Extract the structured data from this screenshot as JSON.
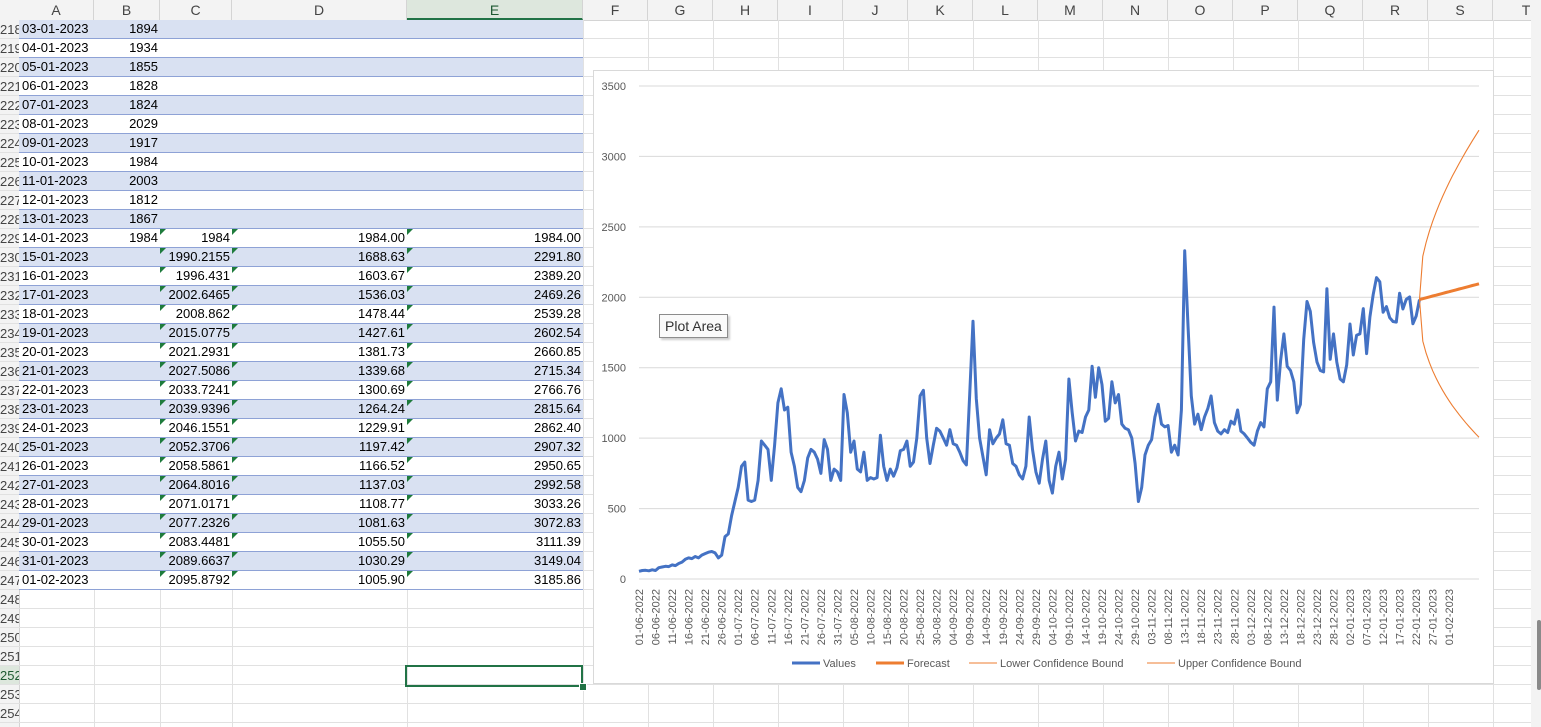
{
  "columns": [
    "A",
    "B",
    "C",
    "D",
    "E",
    "F",
    "G",
    "H",
    "I",
    "J",
    "K",
    "L",
    "M",
    "N",
    "O",
    "P",
    "Q",
    "R",
    "S",
    "T"
  ],
  "selected_column": "E",
  "rows": [
    {
      "num": "218",
      "a": "03-01-2023",
      "b": "1894",
      "c": "",
      "d": "",
      "e": ""
    },
    {
      "num": "219",
      "a": "04-01-2023",
      "b": "1934",
      "c": "",
      "d": "",
      "e": ""
    },
    {
      "num": "220",
      "a": "05-01-2023",
      "b": "1855",
      "c": "",
      "d": "",
      "e": ""
    },
    {
      "num": "221",
      "a": "06-01-2023",
      "b": "1828",
      "c": "",
      "d": "",
      "e": ""
    },
    {
      "num": "222",
      "a": "07-01-2023",
      "b": "1824",
      "c": "",
      "d": "",
      "e": ""
    },
    {
      "num": "223",
      "a": "08-01-2023",
      "b": "2029",
      "c": "",
      "d": "",
      "e": ""
    },
    {
      "num": "224",
      "a": "09-01-2023",
      "b": "1917",
      "c": "",
      "d": "",
      "e": ""
    },
    {
      "num": "225",
      "a": "10-01-2023",
      "b": "1984",
      "c": "",
      "d": "",
      "e": ""
    },
    {
      "num": "226",
      "a": "11-01-2023",
      "b": "2003",
      "c": "",
      "d": "",
      "e": ""
    },
    {
      "num": "227",
      "a": "12-01-2023",
      "b": "1812",
      "c": "",
      "d": "",
      "e": ""
    },
    {
      "num": "228",
      "a": "13-01-2023",
      "b": "1867",
      "c": "",
      "d": "",
      "e": ""
    },
    {
      "num": "229",
      "a": "14-01-2023",
      "b": "1984",
      "c": "1984",
      "d": "1984.00",
      "e": "1984.00"
    },
    {
      "num": "230",
      "a": "15-01-2023",
      "b": "",
      "c": "1990.2155",
      "d": "1688.63",
      "e": "2291.80"
    },
    {
      "num": "231",
      "a": "16-01-2023",
      "b": "",
      "c": "1996.431",
      "d": "1603.67",
      "e": "2389.20"
    },
    {
      "num": "232",
      "a": "17-01-2023",
      "b": "",
      "c": "2002.6465",
      "d": "1536.03",
      "e": "2469.26"
    },
    {
      "num": "233",
      "a": "18-01-2023",
      "b": "",
      "c": "2008.862",
      "d": "1478.44",
      "e": "2539.28"
    },
    {
      "num": "234",
      "a": "19-01-2023",
      "b": "",
      "c": "2015.0775",
      "d": "1427.61",
      "e": "2602.54"
    },
    {
      "num": "235",
      "a": "20-01-2023",
      "b": "",
      "c": "2021.2931",
      "d": "1381.73",
      "e": "2660.85"
    },
    {
      "num": "236",
      "a": "21-01-2023",
      "b": "",
      "c": "2027.5086",
      "d": "1339.68",
      "e": "2715.34"
    },
    {
      "num": "237",
      "a": "22-01-2023",
      "b": "",
      "c": "2033.7241",
      "d": "1300.69",
      "e": "2766.76"
    },
    {
      "num": "238",
      "a": "23-01-2023",
      "b": "",
      "c": "2039.9396",
      "d": "1264.24",
      "e": "2815.64"
    },
    {
      "num": "239",
      "a": "24-01-2023",
      "b": "",
      "c": "2046.1551",
      "d": "1229.91",
      "e": "2862.40"
    },
    {
      "num": "240",
      "a": "25-01-2023",
      "b": "",
      "c": "2052.3706",
      "d": "1197.42",
      "e": "2907.32"
    },
    {
      "num": "241",
      "a": "26-01-2023",
      "b": "",
      "c": "2058.5861",
      "d": "1166.52",
      "e": "2950.65"
    },
    {
      "num": "242",
      "a": "27-01-2023",
      "b": "",
      "c": "2064.8016",
      "d": "1137.03",
      "e": "2992.58"
    },
    {
      "num": "243",
      "a": "28-01-2023",
      "b": "",
      "c": "2071.0171",
      "d": "1108.77",
      "e": "3033.26"
    },
    {
      "num": "244",
      "a": "29-01-2023",
      "b": "",
      "c": "2077.2326",
      "d": "1081.63",
      "e": "3072.83"
    },
    {
      "num": "245",
      "a": "30-01-2023",
      "b": "",
      "c": "2083.4481",
      "d": "1055.50",
      "e": "3111.39"
    },
    {
      "num": "246",
      "a": "31-01-2023",
      "b": "",
      "c": "2089.6637",
      "d": "1030.29",
      "e": "3149.04"
    },
    {
      "num": "247",
      "a": "01-02-2023",
      "b": "",
      "c": "2095.8792",
      "d": "1005.90",
      "e": "3185.86"
    }
  ],
  "empty_rows": [
    "248",
    "249",
    "250",
    "251",
    "252",
    "253",
    "254"
  ],
  "selected_row": "252",
  "tooltip": "Plot Area",
  "chart_data": {
    "type": "line",
    "y_ticks": [
      "0",
      "500",
      "1000",
      "1500",
      "2000",
      "2500",
      "3000",
      "3500"
    ],
    "ylim": [
      0,
      3500
    ],
    "grid": true,
    "legend_position": "bottom",
    "x_start": "01-06-2022",
    "x_end": "01-02-2023",
    "x_tick_labels": [
      "01-06-2022",
      "06-06-2022",
      "11-06-2022",
      "16-06-2022",
      "21-06-2022",
      "26-06-2022",
      "01-07-2022",
      "06-07-2022",
      "11-07-2022",
      "16-07-2022",
      "21-07-2022",
      "26-07-2022",
      "31-07-2022",
      "05-08-2022",
      "10-08-2022",
      "15-08-2022",
      "20-08-2022",
      "25-08-2022",
      "30-08-2022",
      "04-09-2022",
      "09-09-2022",
      "14-09-2022",
      "19-09-2022",
      "24-09-2022",
      "29-09-2022",
      "04-10-2022",
      "09-10-2022",
      "14-10-2022",
      "19-10-2022",
      "24-10-2022",
      "29-10-2022",
      "03-11-2022",
      "08-11-2022",
      "13-11-2022",
      "18-11-2022",
      "23-11-2022",
      "28-11-2022",
      "03-12-2022",
      "08-12-2022",
      "13-12-2022",
      "18-12-2022",
      "23-12-2022",
      "28-12-2022",
      "02-01-2023",
      "07-01-2023",
      "12-01-2023",
      "17-01-2023",
      "22-01-2023",
      "27-01-2023",
      "01-02-2023"
    ],
    "series": [
      {
        "name": "Values",
        "color": "#4472c4",
        "style": "thick",
        "values": [
          55,
          60,
          62,
          58,
          65,
          60,
          80,
          85,
          90,
          88,
          100,
          95,
          110,
          120,
          140,
          150,
          145,
          160,
          150,
          170,
          180,
          190,
          195,
          185,
          150,
          170,
          300,
          320,
          450,
          550,
          650,
          800,
          830,
          560,
          550,
          560,
          700,
          980,
          950,
          920,
          700,
          950,
          1250,
          1350,
          1200,
          1220,
          900,
          800,
          650,
          620,
          700,
          860,
          920,
          900,
          850,
          750,
          990,
          920,
          700,
          780,
          760,
          700,
          1310,
          1180,
          900,
          980,
          780,
          760,
          900,
          700,
          720,
          710,
          720,
          1020,
          800,
          700,
          780,
          730,
          790,
          910,
          920,
          980,
          800,
          830,
          1000,
          1300,
          1340,
          1000,
          820,
          950,
          1070,
          1050,
          1000,
          950,
          1060,
          960,
          950,
          900,
          840,
          810,
          1310,
          1830,
          1280,
          1000,
          870,
          740,
          1060,
          960,
          1000,
          1030,
          1130,
          960,
          950,
          820,
          800,
          740,
          710,
          800,
          1150,
          920,
          760,
          680,
          850,
          980,
          700,
          610,
          800,
          900,
          710,
          850,
          1420,
          1180,
          980,
          1050,
          1040,
          1150,
          1200,
          1510,
          1290,
          1500,
          1380,
          1120,
          1140,
          1400,
          1250,
          1310,
          1100,
          1070,
          1060,
          1000,
          820,
          550,
          650,
          880,
          950,
          990,
          1150,
          1240,
          1100,
          1080,
          1090,
          900,
          950,
          880,
          1200,
          2330,
          1800,
          1300,
          1100,
          1170,
          1060,
          1150,
          1210,
          1300,
          1110,
          1050,
          1030,
          1060,
          1040,
          1120,
          1100,
          1200,
          1050,
          1030,
          1000,
          970,
          950,
          1050,
          1110,
          1080,
          1350,
          1400,
          1930,
          1270,
          1550,
          1740,
          1510,
          1480,
          1400,
          1180,
          1240,
          1700,
          1970,
          1900,
          1680,
          1540,
          1480,
          1470,
          2060,
          1560,
          1740,
          1540,
          1420,
          1400,
          1520,
          1810,
          1590,
          1730,
          1740,
          1920,
          1600,
          1860,
          2020,
          2140,
          2110,
          1894,
          1934,
          1855,
          1828,
          1824,
          2029,
          1917,
          1984,
          2003,
          1812,
          1867,
          1984
        ]
      },
      {
        "name": "Forecast",
        "color": "#ed7d31",
        "style": "thick",
        "values": [
          1984,
          1990.2155,
          1996.431,
          2002.6465,
          2008.862,
          2015.0775,
          2021.2931,
          2027.5086,
          2033.7241,
          2039.9396,
          2046.1551,
          2052.3706,
          2058.5861,
          2064.8016,
          2071.0171,
          2077.2326,
          2083.4481,
          2089.6637,
          2095.8792
        ]
      },
      {
        "name": "Lower Confidence Bound",
        "color": "#ed7d31",
        "style": "thin",
        "values": [
          1984.0,
          1688.63,
          1603.67,
          1536.03,
          1478.44,
          1427.61,
          1381.73,
          1339.68,
          1300.69,
          1264.24,
          1229.91,
          1197.42,
          1166.52,
          1137.03,
          1108.77,
          1081.63,
          1055.5,
          1030.29,
          1005.9
        ]
      },
      {
        "name": "Upper Confidence Bound",
        "color": "#ed7d31",
        "style": "thin",
        "values": [
          1984.0,
          2291.8,
          2389.2,
          2469.26,
          2539.28,
          2602.54,
          2660.85,
          2715.34,
          2766.76,
          2815.64,
          2862.4,
          2907.32,
          2950.65,
          2992.58,
          3033.26,
          3072.83,
          3111.39,
          3149.04,
          3185.86
        ]
      }
    ]
  }
}
